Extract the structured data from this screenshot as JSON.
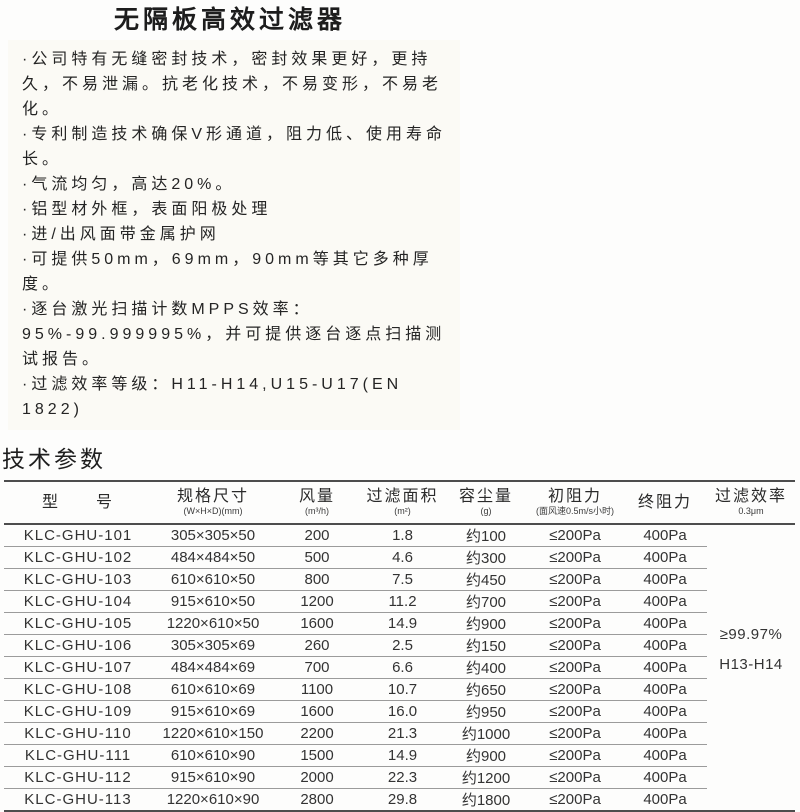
{
  "title": "无隔板高效过滤器",
  "features": [
    "·公司特有无缝密封技术，密封效果更好，更持久，不易泄漏。抗老化技术，不易变形，不易老化。",
    "·专利制造技术确保V形通道，阻力低、使用寿命长。",
    "·气流均匀，高达20%。",
    "·铝型材外框，表面阳极处理",
    "·进/出风面带金属护网",
    "·可提供50mm，69mm，90mm等其它多种厚度。",
    "·逐台激光扫描计数MPPS效率：95%-99.999995%，并可提供逐台逐点扫描测试报告。",
    "·过滤效率等级：H11-H14,U15-U17(EN 1822)"
  ],
  "section_title": "技术参数",
  "table": {
    "headers": [
      {
        "label": "型　　号",
        "sub": ""
      },
      {
        "label": "规格尺寸",
        "sub": "(W×H×D)(mm)"
      },
      {
        "label": "风量",
        "sub": "(m³/h)"
      },
      {
        "label": "过滤面积",
        "sub": "(m²)"
      },
      {
        "label": "容尘量",
        "sub": "(g)"
      },
      {
        "label": "初阻力",
        "sub": "(面风速0.5m/s小时)"
      },
      {
        "label": "终阻力",
        "sub": ""
      },
      {
        "label": "过滤效率",
        "sub": "0.3μm"
      }
    ],
    "rows": [
      {
        "model": "KLC-GHU-101",
        "size": "305×305×50",
        "airflow": "200",
        "area": "1.8",
        "dust": "约100",
        "initial": "≤200Pa",
        "final": "400Pa"
      },
      {
        "model": "KLC-GHU-102",
        "size": "484×484×50",
        "airflow": "500",
        "area": "4.6",
        "dust": "约300",
        "initial": "≤200Pa",
        "final": "400Pa"
      },
      {
        "model": "KLC-GHU-103",
        "size": "610×610×50",
        "airflow": "800",
        "area": "7.5",
        "dust": "约450",
        "initial": "≤200Pa",
        "final": "400Pa"
      },
      {
        "model": "KLC-GHU-104",
        "size": "915×610×50",
        "airflow": "1200",
        "area": "11.2",
        "dust": "约700",
        "initial": "≤200Pa",
        "final": "400Pa"
      },
      {
        "model": "KLC-GHU-105",
        "size": "1220×610×50",
        "airflow": "1600",
        "area": "14.9",
        "dust": "约900",
        "initial": "≤200Pa",
        "final": "400Pa"
      },
      {
        "model": "KLC-GHU-106",
        "size": "305×305×69",
        "airflow": "260",
        "area": "2.5",
        "dust": "约150",
        "initial": "≤200Pa",
        "final": "400Pa"
      },
      {
        "model": "KLC-GHU-107",
        "size": "484×484×69",
        "airflow": "700",
        "area": "6.6",
        "dust": "约400",
        "initial": "≤200Pa",
        "final": "400Pa"
      },
      {
        "model": "KLC-GHU-108",
        "size": "610×610×69",
        "airflow": "1100",
        "area": "10.7",
        "dust": "约650",
        "initial": "≤200Pa",
        "final": "400Pa"
      },
      {
        "model": "KLC-GHU-109",
        "size": "915×610×69",
        "airflow": "1600",
        "area": "16.0",
        "dust": "约950",
        "initial": "≤200Pa",
        "final": "400Pa"
      },
      {
        "model": "KLC-GHU-110",
        "size": "1220×610×150",
        "airflow": "2200",
        "area": "21.3",
        "dust": "约1000",
        "initial": "≤200Pa",
        "final": "400Pa"
      },
      {
        "model": "KLC-GHU-111",
        "size": "610×610×90",
        "airflow": "1500",
        "area": "14.9",
        "dust": "约900",
        "initial": "≤200Pa",
        "final": "400Pa"
      },
      {
        "model": "KLC-GHU-112",
        "size": "915×610×90",
        "airflow": "2000",
        "area": "22.3",
        "dust": "约1200",
        "initial": "≤200Pa",
        "final": "400Pa"
      },
      {
        "model": "KLC-GHU-113",
        "size": "1220×610×90",
        "airflow": "2800",
        "area": "29.8",
        "dust": "约1800",
        "initial": "≤200Pa",
        "final": "400Pa"
      }
    ],
    "efficiency": {
      "line1": "≥99.97%",
      "line2": "H13-H14"
    }
  }
}
